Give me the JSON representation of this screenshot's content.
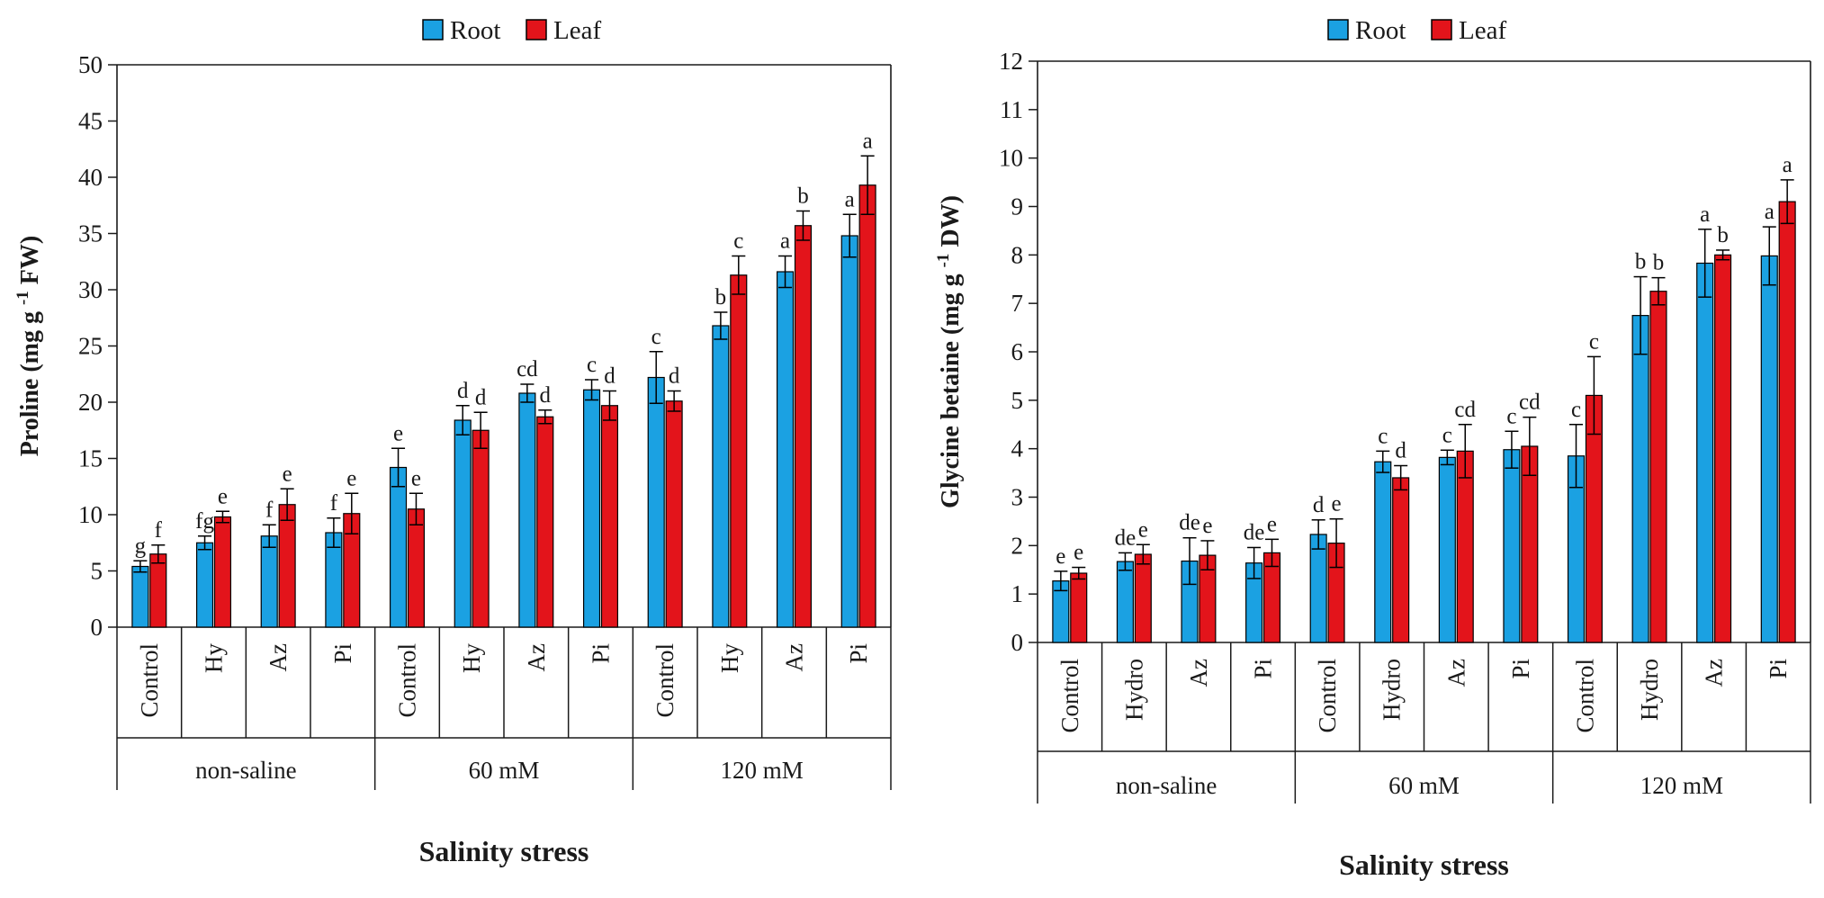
{
  "colors": {
    "root": "#1ba1e2",
    "leaf": "#e3141b",
    "axis": "#1a1a1a"
  },
  "chart_data": [
    {
      "type": "bar",
      "legend": [
        "Root",
        "Leaf"
      ],
      "ylabel_main": "Proline (mg g ",
      "ylabel_sup": "-1",
      "ylabel_tail": " FW)",
      "xlabel": "Salinity stress",
      "ylim": [
        0,
        50
      ],
      "yticks": [
        0,
        5,
        10,
        15,
        20,
        25,
        30,
        35,
        40,
        45,
        50
      ],
      "categories": [
        "Control",
        "Hy",
        "Az",
        "Pi",
        "Control",
        "Hy",
        "Az",
        "Pi",
        "Control",
        "Hy",
        "Az",
        "Pi"
      ],
      "groups": [
        {
          "label": "non-saline",
          "span": 4
        },
        {
          "label": "60 mM",
          "span": 4
        },
        {
          "label": "120 mM",
          "span": 4
        }
      ],
      "series": [
        {
          "name": "Root",
          "values": [
            5.4,
            7.5,
            8.1,
            8.4,
            14.2,
            18.4,
            20.8,
            21.1,
            22.2,
            26.8,
            31.6,
            34.8
          ],
          "errors": [
            0.5,
            0.6,
            1.0,
            1.3,
            1.7,
            1.3,
            0.8,
            0.9,
            2.3,
            1.2,
            1.4,
            1.9
          ],
          "letters": [
            "g",
            "fg",
            "f",
            "f",
            "e",
            "d",
            "cd",
            "c",
            "c",
            "b",
            "a",
            "a"
          ]
        },
        {
          "name": "Leaf",
          "values": [
            6.5,
            9.8,
            10.9,
            10.1,
            10.5,
            17.5,
            18.7,
            19.7,
            20.1,
            31.3,
            35.7,
            39.3
          ],
          "errors": [
            0.8,
            0.5,
            1.4,
            1.8,
            1.4,
            1.6,
            0.6,
            1.3,
            0.9,
            1.7,
            1.3,
            2.6
          ],
          "letters": [
            "f",
            "e",
            "e",
            "e",
            "e",
            "d",
            "d",
            "d",
            "d",
            "c",
            "b",
            "a"
          ]
        }
      ]
    },
    {
      "type": "bar",
      "legend": [
        "Root",
        "Leaf"
      ],
      "ylabel_main": "Glycine betaine (mg g ",
      "ylabel_sup": "-1",
      "ylabel_tail": " DW)",
      "xlabel": "Salinity stress",
      "ylim": [
        0,
        12
      ],
      "yticks": [
        0,
        1,
        2,
        3,
        4,
        5,
        6,
        7,
        8,
        9,
        10,
        11,
        12
      ],
      "categories": [
        "Control",
        "Hydro",
        "Az",
        "Pi",
        "Control",
        "Hydro",
        "Az",
        "Pi",
        "Control",
        "Hydro",
        "Az",
        "Pi"
      ],
      "groups": [
        {
          "label": "non-saline",
          "span": 4
        },
        {
          "label": "60 mM",
          "span": 4
        },
        {
          "label": "120 mM",
          "span": 4
        }
      ],
      "series": [
        {
          "name": "Root",
          "values": [
            1.27,
            1.67,
            1.68,
            1.64,
            2.23,
            3.73,
            3.82,
            3.98,
            3.85,
            6.75,
            7.83,
            7.98
          ],
          "errors": [
            0.2,
            0.18,
            0.48,
            0.32,
            0.3,
            0.22,
            0.15,
            0.38,
            0.65,
            0.8,
            0.7,
            0.6
          ],
          "letters": [
            "e",
            "de",
            "de",
            "de",
            "d",
            "c",
            "c",
            "c",
            "c",
            "b",
            "a",
            "a"
          ]
        },
        {
          "name": "Leaf",
          "values": [
            1.43,
            1.82,
            1.8,
            1.85,
            2.05,
            3.4,
            3.95,
            4.05,
            5.1,
            7.25,
            8.0,
            9.1
          ],
          "errors": [
            0.12,
            0.2,
            0.3,
            0.28,
            0.5,
            0.25,
            0.55,
            0.6,
            0.8,
            0.28,
            0.1,
            0.45
          ],
          "letters": [
            "e",
            "e",
            "e",
            "e",
            "e",
            "d",
            "cd",
            "cd",
            "c",
            "b",
            "b",
            "a"
          ]
        }
      ]
    }
  ]
}
